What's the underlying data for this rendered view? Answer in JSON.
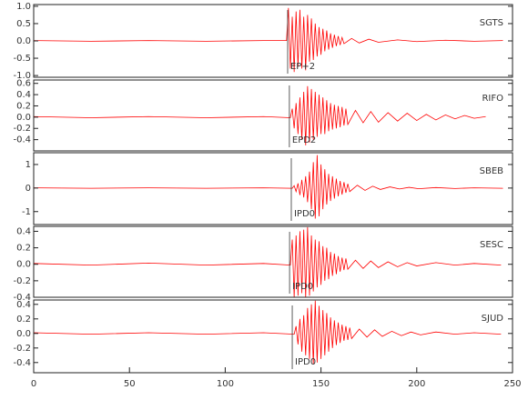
{
  "chart_data": [
    {
      "type": "line",
      "label": "SGTS",
      "color": "#ff0000",
      "x": [
        0,
        30,
        60,
        90,
        120,
        132,
        133,
        134,
        135,
        136,
        137,
        138,
        139,
        140,
        141,
        142,
        143,
        144,
        145,
        146,
        147,
        148,
        149,
        150,
        151,
        152,
        153,
        154,
        155,
        156,
        157,
        158,
        159,
        160,
        161,
        162,
        166,
        170,
        175,
        180,
        190,
        200,
        215,
        230,
        245
      ],
      "values": [
        0.01,
        -0.01,
        0.01,
        -0.01,
        0.01,
        0.01,
        0.95,
        -0.8,
        0.7,
        -0.9,
        0.85,
        -0.75,
        0.9,
        -0.8,
        0.7,
        -0.85,
        0.75,
        -0.6,
        0.65,
        -0.55,
        0.5,
        -0.45,
        0.4,
        -0.4,
        0.35,
        -0.3,
        0.3,
        -0.25,
        0.22,
        -0.2,
        0.18,
        -0.15,
        0.14,
        -0.12,
        0.1,
        -0.08,
        0.07,
        -0.06,
        0.05,
        -0.04,
        0.03,
        -0.02,
        0.02,
        -0.01,
        0.01
      ],
      "xlim": [
        0,
        250
      ],
      "ylim": [
        -1.05,
        1.05
      ],
      "yticks": [
        {
          "value": 1,
          "label": "1.0"
        },
        {
          "value": 0.5,
          "label": "0.5"
        },
        {
          "value": 0,
          "label": "0.0"
        },
        {
          "value": -0.5,
          "label": "-0.5"
        },
        {
          "value": -1,
          "label": "-1.0"
        }
      ],
      "pick": {
        "label": "EP+2",
        "x": 132.6
      }
    },
    {
      "type": "line",
      "label": "RIFO",
      "color": "#ff0000",
      "x": [
        0,
        30,
        60,
        90,
        120,
        134,
        135,
        136,
        137,
        138,
        139,
        140,
        141,
        142,
        143,
        144,
        145,
        146,
        147,
        148,
        149,
        150,
        151,
        152,
        153,
        154,
        155,
        156,
        157,
        158,
        159,
        160,
        161,
        162,
        163,
        164,
        168,
        172,
        176,
        180,
        185,
        190,
        195,
        200,
        205,
        210,
        215,
        220,
        225,
        230,
        236
      ],
      "values": [
        0.01,
        -0.01,
        0.01,
        -0.01,
        0.01,
        -0.01,
        0.15,
        -0.2,
        0.25,
        -0.3,
        0.35,
        -0.4,
        0.45,
        -0.5,
        0.55,
        -0.45,
        0.5,
        -0.4,
        0.45,
        -0.35,
        0.4,
        -0.3,
        0.35,
        -0.3,
        0.3,
        -0.25,
        0.25,
        -0.22,
        0.22,
        -0.2,
        0.2,
        -0.18,
        0.18,
        -0.15,
        0.15,
        -0.13,
        0.12,
        -0.1,
        0.1,
        -0.09,
        0.08,
        -0.07,
        0.07,
        -0.06,
        0.05,
        -0.05,
        0.04,
        -0.03,
        0.03,
        -0.02,
        0.01
      ],
      "xlim": [
        0,
        250
      ],
      "ylim": [
        -0.6,
        0.66
      ],
      "yticks": [
        {
          "value": 0.6,
          "label": "0.6"
        },
        {
          "value": 0.4,
          "label": "0.4"
        },
        {
          "value": 0.2,
          "label": "0.2"
        },
        {
          "value": 0,
          "label": "0.0"
        },
        {
          "value": -0.2,
          "label": "-0.2"
        },
        {
          "value": -0.4,
          "label": "-0.4"
        }
      ],
      "pick": {
        "label": "EPD2",
        "x": 133.5
      }
    },
    {
      "type": "line",
      "label": "SBEB",
      "color": "#ff0000",
      "x": [
        0,
        30,
        60,
        90,
        120,
        135,
        136,
        137,
        138,
        139,
        140,
        141,
        142,
        143,
        144,
        145,
        146,
        147,
        148,
        149,
        150,
        151,
        152,
        153,
        154,
        155,
        156,
        157,
        158,
        159,
        160,
        161,
        162,
        163,
        164,
        165,
        169,
        173,
        177,
        181,
        186,
        191,
        196,
        201,
        210,
        220,
        230,
        245
      ],
      "values": [
        0.01,
        -0.01,
        0.01,
        -0.01,
        0.01,
        -0.01,
        0.1,
        -0.15,
        0.2,
        -0.3,
        0.35,
        -0.4,
        0.5,
        -0.6,
        0.7,
        -0.9,
        1.1,
        -1.3,
        1.4,
        -1.2,
        1.0,
        -0.9,
        0.8,
        -0.7,
        0.6,
        -0.55,
        0.5,
        -0.45,
        0.4,
        -0.35,
        0.3,
        -0.28,
        0.25,
        -0.2,
        0.18,
        -0.15,
        0.12,
        -0.1,
        0.08,
        -0.06,
        0.05,
        -0.04,
        0.03,
        -0.03,
        0.02,
        -0.02,
        0.01,
        -0.01
      ],
      "xlim": [
        0,
        250
      ],
      "ylim": [
        -1.55,
        1.5
      ],
      "yticks": [
        1,
        0,
        -1
      ],
      "pick": {
        "label": "IPD0",
        "x": 134.5
      }
    },
    {
      "type": "line",
      "label": "SESC",
      "color": "#ff0000",
      "x": [
        0,
        30,
        60,
        90,
        120,
        134,
        135,
        136,
        137,
        138,
        139,
        140,
        141,
        142,
        143,
        144,
        145,
        146,
        147,
        148,
        149,
        150,
        151,
        152,
        153,
        154,
        155,
        156,
        157,
        158,
        159,
        160,
        161,
        162,
        163,
        164,
        168,
        172,
        176,
        180,
        185,
        190,
        195,
        200,
        210,
        220,
        230,
        244
      ],
      "values": [
        0.01,
        -0.01,
        0.015,
        -0.01,
        0.01,
        -0.01,
        0.3,
        -0.4,
        0.35,
        -0.38,
        0.4,
        -0.35,
        0.42,
        -0.4,
        0.45,
        -0.38,
        0.35,
        -0.33,
        0.3,
        -0.28,
        0.28,
        -0.25,
        0.22,
        -0.2,
        0.2,
        -0.18,
        0.15,
        -0.14,
        0.13,
        -0.12,
        0.1,
        -0.09,
        0.08,
        -0.07,
        0.07,
        -0.06,
        0.05,
        -0.05,
        0.04,
        -0.04,
        0.03,
        -0.03,
        0.02,
        -0.02,
        0.02,
        -0.01,
        0.01,
        -0.01
      ],
      "xlim": [
        0,
        250
      ],
      "ylim": [
        -0.4,
        0.46
      ],
      "yticks": [
        {
          "value": 0.4,
          "label": "0.4"
        },
        {
          "value": 0.2,
          "label": "0.2"
        },
        {
          "value": 0,
          "label": "0.0"
        },
        {
          "value": -0.2,
          "label": "-0.2"
        },
        {
          "value": -0.4,
          "label": "-0.4"
        }
      ],
      "pick": {
        "label": "IPD0",
        "x": 133.6
      }
    },
    {
      "type": "line",
      "label": "SJUD",
      "color": "#ff0000",
      "x": [
        0,
        30,
        60,
        90,
        120,
        136,
        137,
        138,
        139,
        140,
        141,
        142,
        143,
        144,
        145,
        146,
        147,
        148,
        149,
        150,
        151,
        152,
        153,
        154,
        155,
        156,
        157,
        158,
        159,
        160,
        161,
        162,
        163,
        164,
        165,
        166,
        170,
        174,
        178,
        182,
        187,
        192,
        197,
        202,
        210,
        220,
        230,
        244
      ],
      "values": [
        0.01,
        -0.01,
        0.01,
        -0.01,
        0.01,
        -0.01,
        0.1,
        -0.15,
        0.2,
        -0.25,
        0.25,
        -0.3,
        0.35,
        -0.35,
        0.4,
        -0.42,
        0.45,
        -0.4,
        0.38,
        -0.35,
        0.32,
        -0.3,
        0.28,
        -0.25,
        0.22,
        -0.2,
        0.18,
        -0.16,
        0.15,
        -0.13,
        0.12,
        -0.1,
        0.1,
        -0.09,
        0.08,
        -0.07,
        0.06,
        -0.05,
        0.05,
        -0.04,
        0.03,
        -0.03,
        0.02,
        -0.02,
        0.02,
        -0.01,
        0.01,
        -0.01
      ],
      "xlim": [
        0,
        250
      ],
      "ylim": [
        -0.54,
        0.46
      ],
      "yticks": [
        {
          "value": 0.4,
          "label": "0.4"
        },
        {
          "value": 0.2,
          "label": "0.2"
        },
        {
          "value": 0,
          "label": "0.0"
        },
        {
          "value": -0.2,
          "label": "-0.2"
        },
        {
          "value": -0.4,
          "label": "-0.4"
        }
      ],
      "xticks": [
        0,
        50,
        100,
        150,
        200,
        250
      ],
      "pick": {
        "label": "IPD0",
        "x": 135
      }
    }
  ]
}
